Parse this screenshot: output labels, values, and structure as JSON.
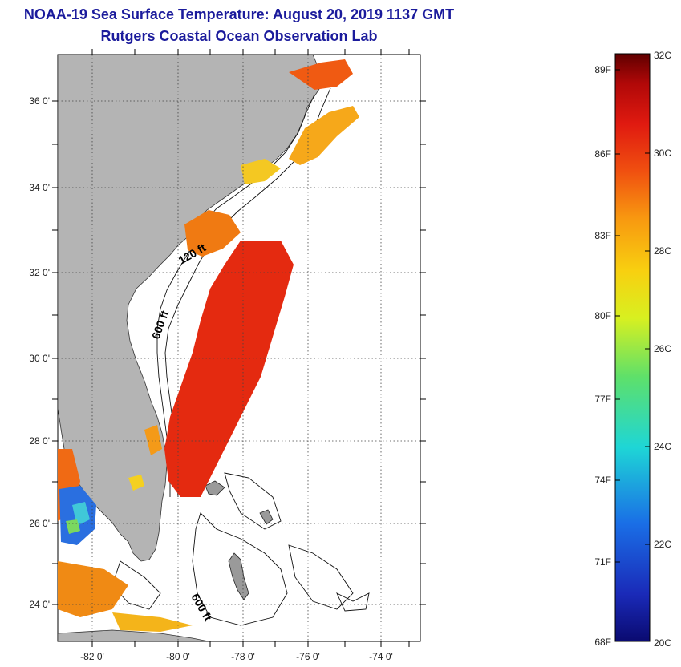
{
  "title": {
    "line1": "NOAA-19 Sea Surface Temperature:  August 20, 2019 1137 GMT",
    "line2": "Rutgers Coastal Ocean Observation Lab"
  },
  "map": {
    "lon_labels": [
      "-82 0'",
      "-80 0'",
      "-78 0'",
      "-76 0'",
      "-74 0'"
    ],
    "lat_labels": [
      "36 0'",
      "34 0'",
      "32 0'",
      "30 0'",
      "28 0'",
      "26 0'",
      "24 0'"
    ],
    "contour_labels": [
      "120 ft",
      "600 ft",
      "600 ft"
    ],
    "land_color": "#b4b4b4",
    "ocean_background": "#ffffff",
    "grid_style": "dotted"
  },
  "colorbar": {
    "left_labels": [
      "89F",
      "86F",
      "83F",
      "80F",
      "77F",
      "74F",
      "71F",
      "68F"
    ],
    "right_labels": [
      "32C",
      "30C",
      "28C",
      "26C",
      "24C",
      "22C",
      "20C"
    ],
    "min_c": 20,
    "max_c": 32,
    "colors": [
      "#0a0a70",
      "#1a3ad0",
      "#1e8ef0",
      "#1ed6d6",
      "#4ee07a",
      "#c8f020",
      "#f8f010",
      "#f8b010",
      "#f06010",
      "#e02010",
      "#b40808",
      "#6a0000"
    ]
  }
}
